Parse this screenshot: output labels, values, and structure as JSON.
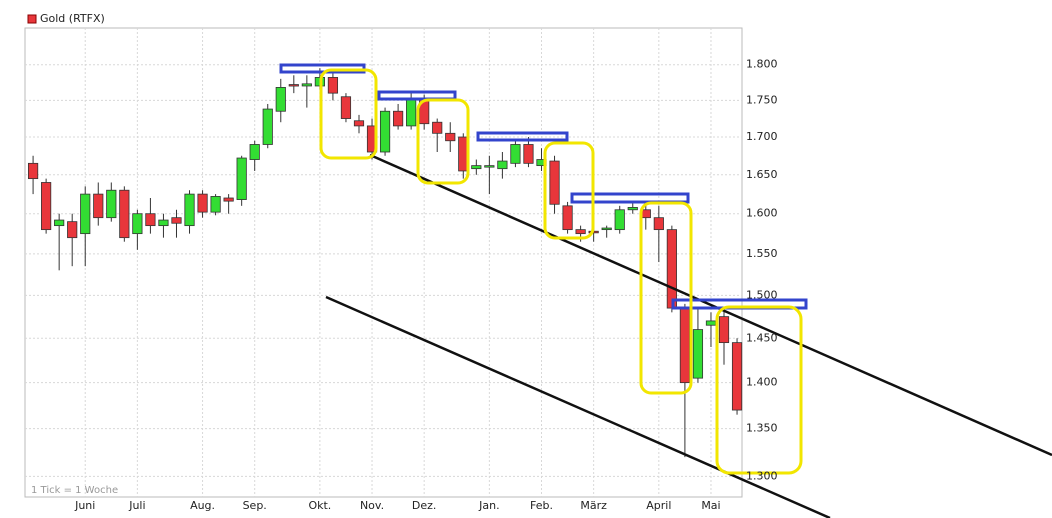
{
  "chart_data": {
    "type": "candlestick",
    "log_scale": true,
    "grid": true,
    "legend_position": "top-left",
    "note": "1 Tick = 1 Woche",
    "categories": [
      null,
      null,
      null,
      null,
      "Juni",
      null,
      null,
      null,
      "Juli",
      null,
      null,
      null,
      null,
      "Aug.",
      null,
      null,
      null,
      "Sep.",
      null,
      null,
      null,
      null,
      "Okt.",
      null,
      null,
      null,
      "Nov.",
      null,
      null,
      null,
      "Dez.",
      null,
      null,
      null,
      null,
      "Jan.",
      null,
      null,
      null,
      "Feb.",
      null,
      null,
      null,
      "März",
      null,
      null,
      null,
      null,
      "April",
      null,
      null,
      null,
      "Mai",
      null,
      null
    ],
    "series": [
      {
        "name": "Gold (RTFX)",
        "color": "#e8363b",
        "up_color": "#33dd33",
        "open": [
          1.665,
          1.64,
          1.585,
          1.59,
          1.575,
          1.625,
          1.595,
          1.63,
          1.575,
          1.6,
          1.585,
          1.595,
          1.585,
          1.625,
          1.602,
          1.62,
          1.618,
          1.67,
          1.69,
          1.735,
          1.772,
          1.77,
          1.77,
          1.782,
          1.755,
          1.722,
          1.715,
          1.68,
          1.735,
          1.715,
          1.752,
          1.72,
          1.705,
          1.7,
          1.658,
          1.66,
          1.658,
          1.665,
          1.69,
          1.662,
          1.668,
          1.61,
          1.58,
          1.578,
          1.58,
          1.58,
          1.605,
          1.605,
          1.595,
          1.58,
          1.485,
          1.405,
          1.465,
          1.475,
          1.445
        ],
        "high": [
          1.675,
          1.645,
          1.6,
          1.6,
          1.635,
          1.64,
          1.64,
          1.635,
          1.605,
          1.62,
          1.6,
          1.605,
          1.63,
          1.63,
          1.625,
          1.625,
          1.675,
          1.695,
          1.745,
          1.78,
          1.785,
          1.785,
          1.795,
          1.79,
          1.76,
          1.73,
          1.725,
          1.74,
          1.745,
          1.76,
          1.758,
          1.725,
          1.72,
          1.705,
          1.67,
          1.675,
          1.68,
          1.695,
          1.7,
          1.685,
          1.675,
          1.615,
          1.585,
          1.582,
          1.585,
          1.61,
          1.615,
          1.61,
          1.61,
          1.585,
          1.49,
          1.485,
          1.48,
          1.485,
          1.45
        ],
        "low": [
          1.625,
          1.575,
          1.53,
          1.535,
          1.535,
          1.585,
          1.59,
          1.565,
          1.555,
          1.575,
          1.57,
          1.57,
          1.575,
          1.595,
          1.598,
          1.6,
          1.61,
          1.655,
          1.685,
          1.72,
          1.76,
          1.74,
          1.765,
          1.75,
          1.72,
          1.705,
          1.67,
          1.675,
          1.71,
          1.71,
          1.71,
          1.68,
          1.68,
          1.645,
          1.65,
          1.625,
          1.645,
          1.66,
          1.66,
          1.655,
          1.6,
          1.575,
          1.565,
          1.565,
          1.57,
          1.575,
          1.6,
          1.58,
          1.54,
          1.48,
          1.32,
          1.4,
          1.44,
          1.42,
          1.365
        ],
        "close": [
          1.645,
          1.58,
          1.592,
          1.57,
          1.625,
          1.595,
          1.63,
          1.57,
          1.6,
          1.585,
          1.592,
          1.588,
          1.625,
          1.602,
          1.622,
          1.616,
          1.672,
          1.69,
          1.738,
          1.768,
          1.77,
          1.773,
          1.782,
          1.76,
          1.725,
          1.715,
          1.68,
          1.735,
          1.715,
          1.752,
          1.718,
          1.705,
          1.695,
          1.655,
          1.662,
          1.662,
          1.668,
          1.69,
          1.665,
          1.67,
          1.612,
          1.58,
          1.575,
          1.576,
          1.582,
          1.605,
          1.608,
          1.595,
          1.58,
          1.485,
          1.4,
          1.46,
          1.47,
          1.445,
          1.37
        ]
      }
    ],
    "ylim": [
      1.279,
      1.853
    ],
    "yticks": [
      {
        "value": 1.3,
        "label": "1.300"
      },
      {
        "value": 1.35,
        "label": "1.350"
      },
      {
        "value": 1.4,
        "label": "1.400"
      },
      {
        "value": 1.45,
        "label": "1.450"
      },
      {
        "value": 1.5,
        "label": "1.500"
      },
      {
        "value": 1.55,
        "label": "1.550"
      },
      {
        "value": 1.6,
        "label": "1.600"
      },
      {
        "value": 1.65,
        "label": "1.650"
      },
      {
        "value": 1.7,
        "label": "1.700"
      },
      {
        "value": 1.75,
        "label": "1.750"
      },
      {
        "value": 1.8,
        "label": "1.800"
      }
    ]
  }
}
